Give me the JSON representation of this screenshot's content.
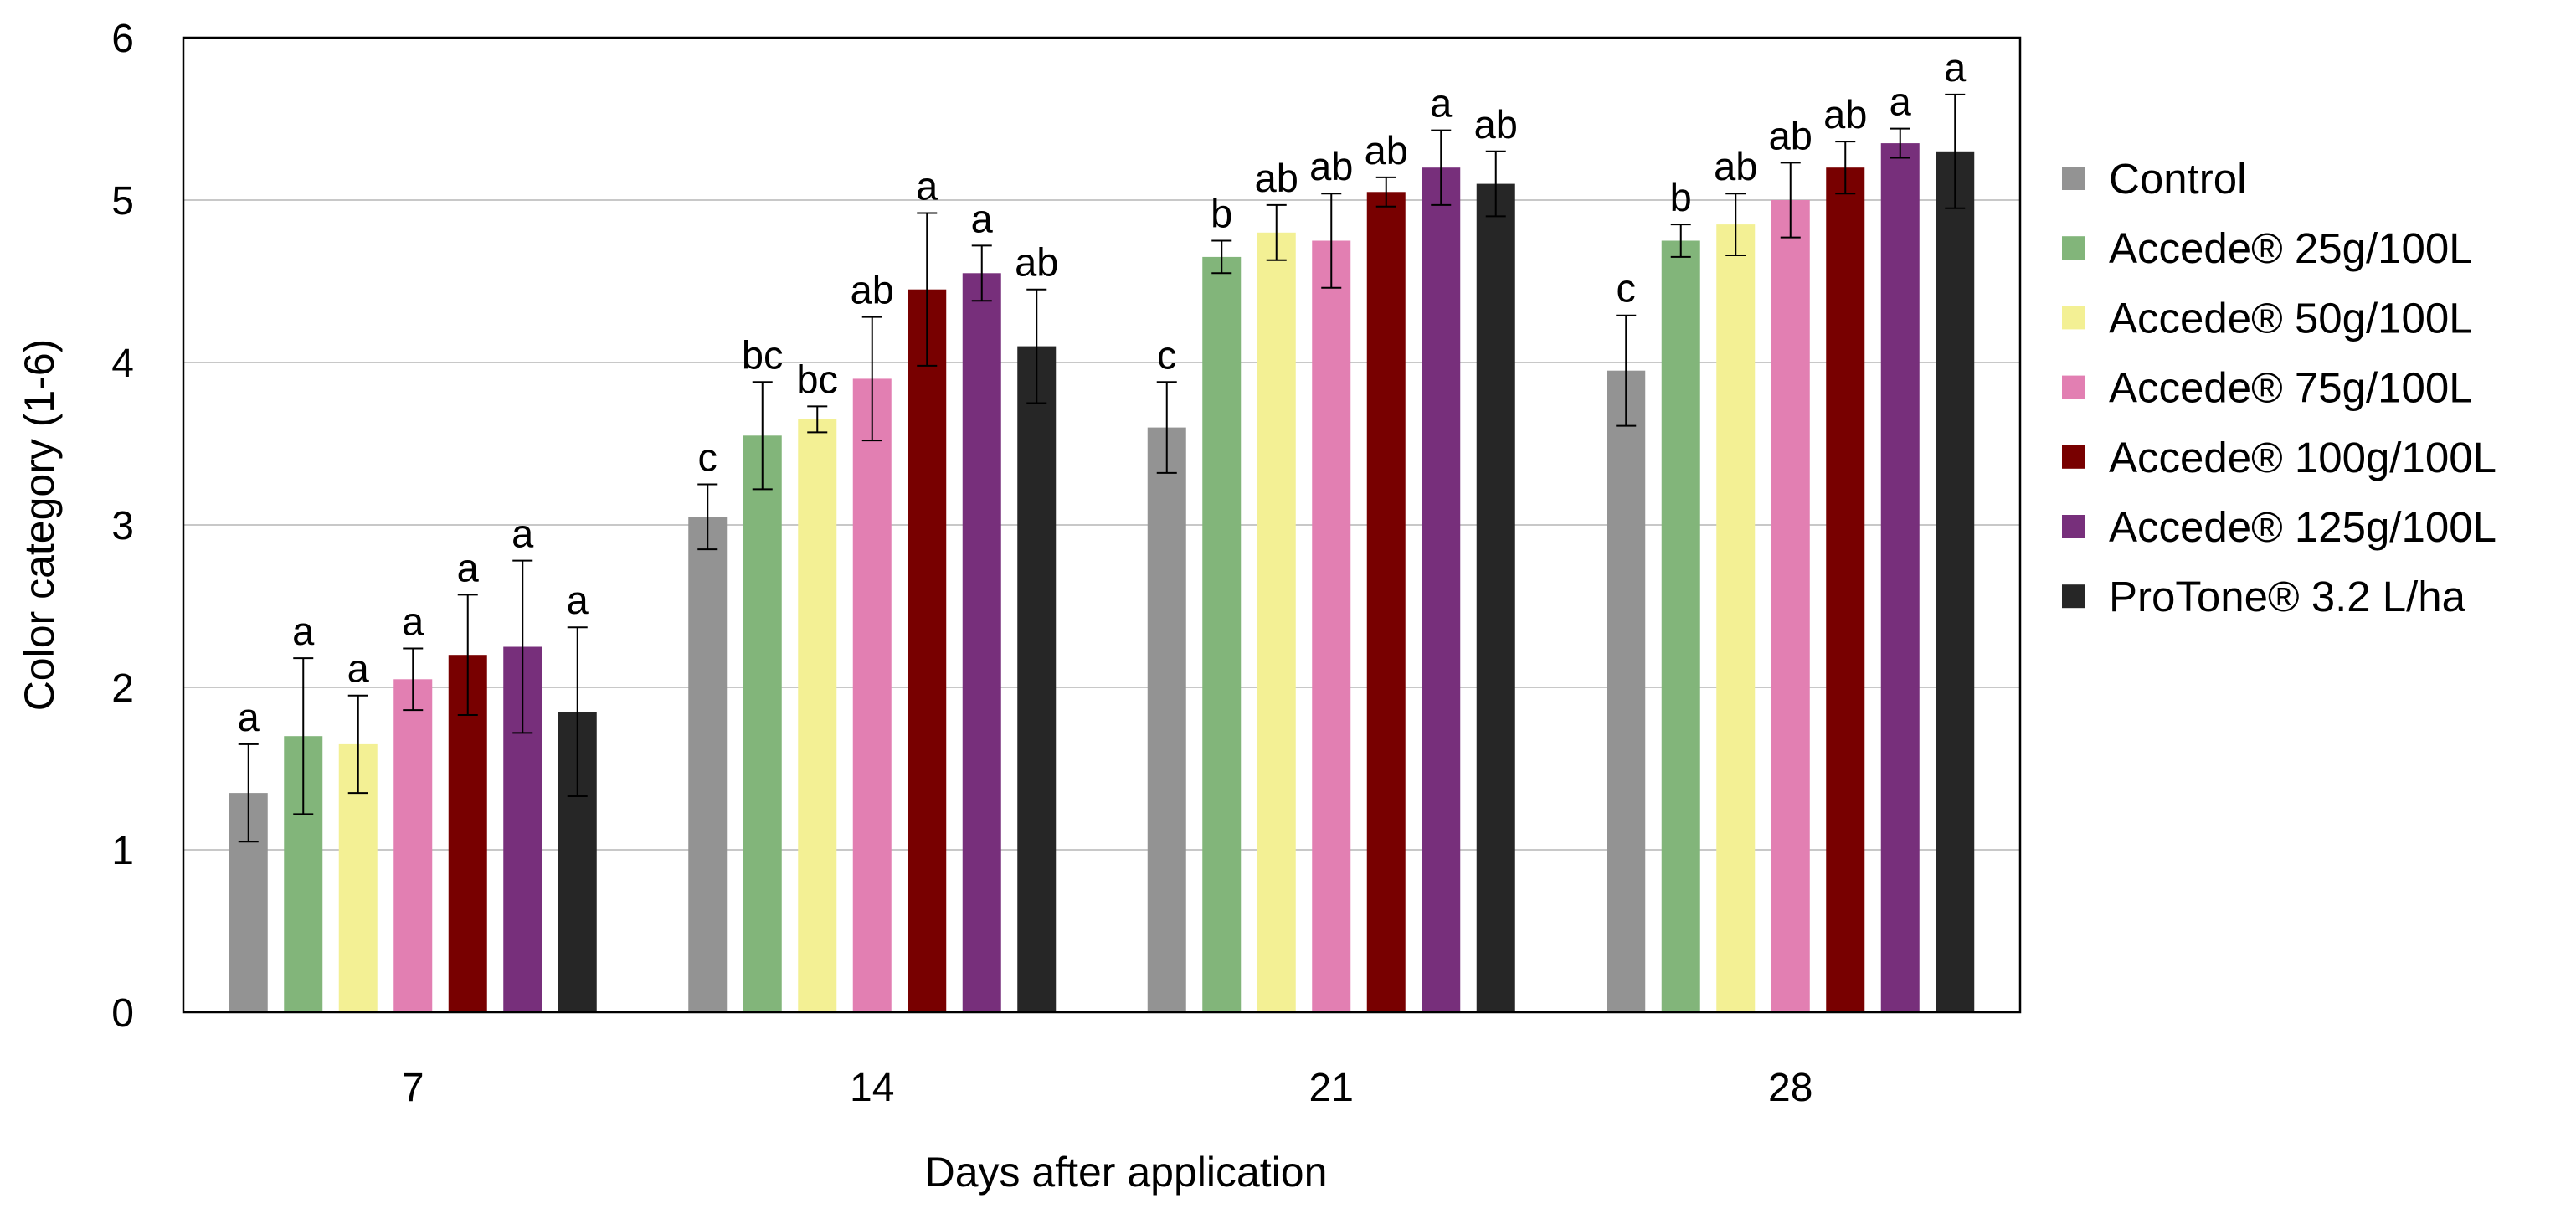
{
  "chart_data": {
    "type": "bar",
    "title": "",
    "xlabel": "Days after application",
    "ylabel": "Color category (1-6)",
    "ylim": [
      0,
      6
    ],
    "yticks": [
      0,
      1,
      2,
      3,
      4,
      5,
      6
    ],
    "grid": true,
    "legend_position": "right",
    "categories": [
      "7",
      "14",
      "21",
      "28"
    ],
    "series": [
      {
        "name": "Control",
        "color": "#939393",
        "values": [
          1.35,
          3.05,
          3.6,
          3.95
        ],
        "errors": [
          0.3,
          0.2,
          0.28,
          0.34
        ],
        "letters": [
          "a",
          "c",
          "c",
          "c"
        ]
      },
      {
        "name": "Accede® 25g/100L",
        "color": "#82b57a",
        "values": [
          1.7,
          3.55,
          4.65,
          4.75
        ],
        "errors": [
          0.48,
          0.33,
          0.1,
          0.1
        ],
        "letters": [
          "a",
          "bc",
          "b",
          "b"
        ]
      },
      {
        "name": "Accede® 50g/100L",
        "color": "#f3f094",
        "values": [
          1.65,
          3.65,
          4.8,
          4.85
        ],
        "errors": [
          0.3,
          0.08,
          0.17,
          0.19
        ],
        "letters": [
          "a",
          "bc",
          "ab",
          "ab"
        ]
      },
      {
        "name": "Accede® 75g/100L",
        "color": "#e27fb2",
        "values": [
          2.05,
          3.9,
          4.75,
          5.0
        ],
        "errors": [
          0.19,
          0.38,
          0.29,
          0.23
        ],
        "letters": [
          "a",
          "ab",
          "ab",
          "ab"
        ]
      },
      {
        "name": "Accede® 100g/100L",
        "color": "#780000",
        "values": [
          2.2,
          4.45,
          5.05,
          5.2
        ],
        "errors": [
          0.37,
          0.47,
          0.09,
          0.16
        ],
        "letters": [
          "a",
          "a",
          "ab",
          "ab"
        ]
      },
      {
        "name": "Accede® 125g/100L",
        "color": "#772f7b",
        "values": [
          2.25,
          4.55,
          5.2,
          5.35
        ],
        "errors": [
          0.53,
          0.17,
          0.23,
          0.09
        ],
        "letters": [
          "a",
          "a",
          "a",
          "a"
        ]
      },
      {
        "name": "ProTone® 3.2 L/ha",
        "color": "#262626",
        "values": [
          1.85,
          4.1,
          5.1,
          5.3
        ],
        "errors": [
          0.52,
          0.35,
          0.2,
          0.35
        ],
        "letters": [
          "a",
          "ab",
          "ab",
          "a"
        ]
      }
    ]
  }
}
